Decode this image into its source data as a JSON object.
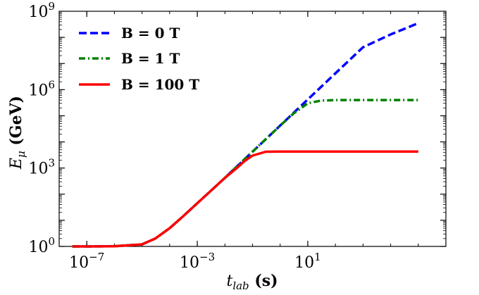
{
  "chart_data": {
    "type": "line",
    "title": "",
    "xscale": "log",
    "yscale": "log",
    "xlim": [
      1e-08,
      1000000.0
    ],
    "ylim": [
      1,
      1000000000.0
    ],
    "xticks": [
      {
        "exp": "−7",
        "value": 1e-07
      },
      {
        "exp": "−3",
        "value": 0.001
      },
      {
        "exp": "1",
        "value": 10
      }
    ],
    "yticks": [
      {
        "exp": "0",
        "value": 1
      },
      {
        "exp": "3",
        "value": 1000
      },
      {
        "exp": "6",
        "value": 1000000.0
      },
      {
        "exp": "9",
        "value": 1000000000.0
      }
    ],
    "tick_base": "10",
    "xlabel": {
      "main": "t",
      "sub": "lab",
      "unit": " (s)"
    },
    "ylabel": {
      "main": "E",
      "sub": "μ",
      "unit": " (GeV)"
    },
    "legend_position": "top-left",
    "series": [
      {
        "name": "B = 0 T",
        "color": "#0000ff",
        "style": "dashed",
        "x": [
          3e-08,
          1e-07,
          1e-06,
          1e-05,
          3e-05,
          0.0001,
          0.0003,
          0.001,
          0.003,
          0.01,
          0.03,
          0.1,
          0.3,
          1,
          3,
          10,
          30,
          100,
          1000,
          10000.0,
          100000.0
        ],
        "y": [
          1,
          1,
          1.02,
          1.2,
          2,
          5,
          14,
          45,
          130,
          420,
          1260,
          4200,
          12600,
          42000,
          126000,
          420000,
          1260000,
          4200000,
          42000000.0,
          130000000.0,
          350000000.0
        ]
      },
      {
        "name": "B = 1 T",
        "color": "#008000",
        "style": "dashdot",
        "x": [
          3e-08,
          1e-07,
          1e-06,
          1e-05,
          3e-05,
          0.0001,
          0.0003,
          0.001,
          0.003,
          0.01,
          0.03,
          0.1,
          0.3,
          1,
          3,
          10,
          30,
          100,
          1000,
          10000.0,
          100000.0
        ],
        "y": [
          1,
          1,
          1.02,
          1.2,
          2,
          5,
          14,
          45,
          130,
          420,
          1260,
          4200,
          12600,
          42000,
          120000,
          300000,
          380000,
          400000,
          400000,
          400000,
          400000
        ]
      },
      {
        "name": "B = 100 T",
        "color": "#ff0000",
        "style": "solid",
        "x": [
          3e-08,
          1e-07,
          1e-06,
          1e-05,
          3e-05,
          0.0001,
          0.0003,
          0.001,
          0.003,
          0.01,
          0.03,
          0.05,
          0.1,
          0.3,
          1,
          3,
          10,
          100,
          1000,
          10000.0,
          100000.0
        ],
        "y": [
          1,
          1,
          1.02,
          1.2,
          2,
          5,
          14,
          45,
          130,
          420,
          1100,
          1800,
          3000,
          4200,
          4300,
          4300,
          4300,
          4300,
          4300,
          4300,
          4300
        ]
      }
    ]
  }
}
